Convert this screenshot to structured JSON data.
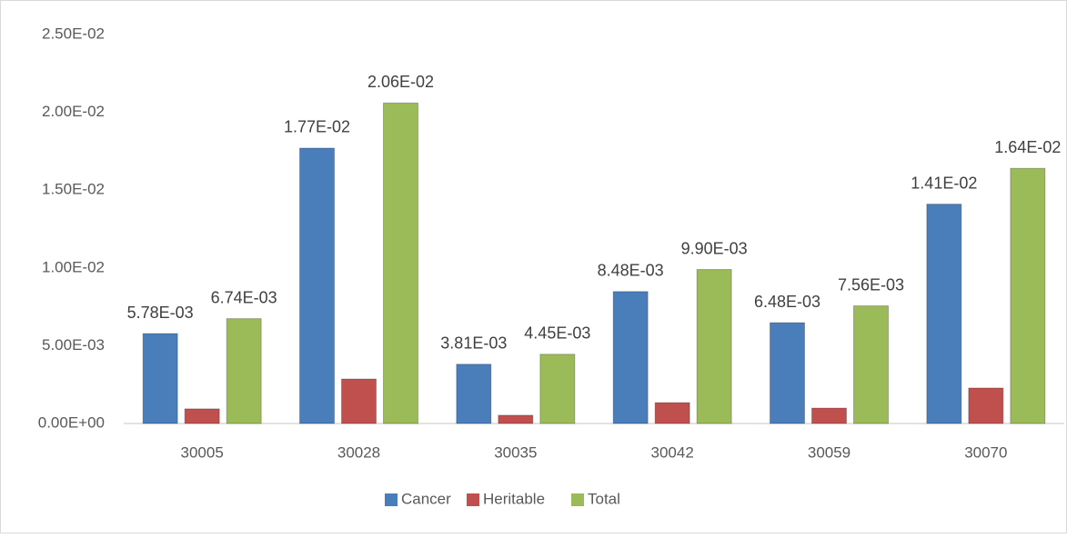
{
  "chart_data": {
    "type": "bar",
    "categories": [
      "30005",
      "30028",
      "30035",
      "30042",
      "30059",
      "30070"
    ],
    "series": [
      {
        "name": "Cancer",
        "color": "#4a7ebb",
        "values": [
          0.00578,
          0.0177,
          0.00381,
          0.00848,
          0.00648,
          0.0141
        ],
        "value_labels": [
          "5.78E-03",
          "1.77E-02",
          "3.81E-03",
          "8.48E-03",
          "6.48E-03",
          "1.41E-02"
        ]
      },
      {
        "name": "Heritable",
        "color": "#c0504d",
        "values": [
          0.00094,
          0.00286,
          0.00053,
          0.00134,
          0.00099,
          0.00228
        ]
      },
      {
        "name": "Total",
        "color": "#9bbb59",
        "values": [
          0.00674,
          0.0206,
          0.00445,
          0.0099,
          0.00756,
          0.0164
        ],
        "value_labels": [
          "6.74E-03",
          "2.06E-02",
          "4.45E-03",
          "9.90E-03",
          "7.56E-03",
          "1.64E-02"
        ]
      }
    ],
    "ylim": [
      0,
      0.025
    ],
    "yticks": [
      {
        "value": 0,
        "label": "0.00E+00"
      },
      {
        "value": 0.005,
        "label": "5.00E-03"
      },
      {
        "value": 0.01,
        "label": "1.00E-02"
      },
      {
        "value": 0.015,
        "label": "1.50E-02"
      },
      {
        "value": 0.02,
        "label": "2.00E-02"
      },
      {
        "value": 0.025,
        "label": "2.50E-02"
      }
    ],
    "grid": false,
    "legend": "bottom"
  }
}
